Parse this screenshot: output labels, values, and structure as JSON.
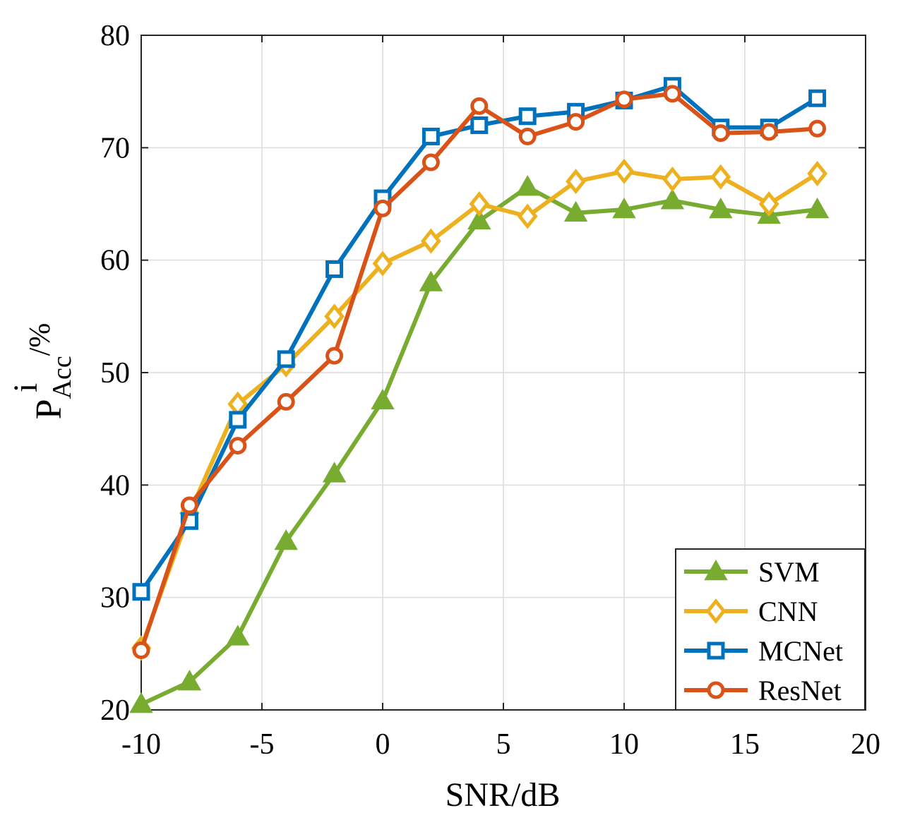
{
  "chart_data": {
    "type": "line",
    "title": "",
    "xlabel": "SNR/dB",
    "ylabel": {
      "base": "P",
      "superscript": "i",
      "subscript": "Acc",
      "suffix": "/%"
    },
    "xlim": [
      -10,
      20
    ],
    "ylim": [
      20,
      80
    ],
    "xticks": [
      -10,
      -5,
      0,
      5,
      10,
      15,
      20
    ],
    "yticks": [
      20,
      30,
      40,
      50,
      60,
      70,
      80
    ],
    "xtick_labels": [
      "-10",
      "-5",
      "0",
      "5",
      "10",
      "15",
      "20"
    ],
    "ytick_labels": [
      "20",
      "30",
      "40",
      "50",
      "60",
      "70",
      "80"
    ],
    "grid": true,
    "legend_position": "bottom-right",
    "x": [
      -10,
      -8,
      -6,
      -4,
      -2,
      0,
      2,
      4,
      6,
      8,
      10,
      12,
      14,
      16,
      18
    ],
    "series": [
      {
        "name": "SVM",
        "color": "#77AC30",
        "marker": "triangle",
        "values": [
          20.5,
          22.5,
          26.5,
          35.0,
          41.0,
          47.5,
          58.0,
          63.5,
          66.5,
          64.2,
          64.5,
          65.3,
          64.5,
          64.0,
          64.5
        ]
      },
      {
        "name": "CNN",
        "color": "#EDB120",
        "marker": "diamond",
        "values": [
          25.5,
          37.5,
          47.2,
          50.7,
          55.0,
          59.7,
          61.7,
          65.0,
          63.9,
          67.0,
          67.9,
          67.2,
          67.4,
          65.0,
          67.7
        ]
      },
      {
        "name": "MCNet",
        "color": "#0072BD",
        "marker": "square",
        "values": [
          30.5,
          36.8,
          45.8,
          51.2,
          59.2,
          65.5,
          71.0,
          72.0,
          72.8,
          73.2,
          74.2,
          75.5,
          71.8,
          71.8,
          74.4
        ]
      },
      {
        "name": "ResNet",
        "color": "#D95319",
        "marker": "circle",
        "values": [
          25.3,
          38.2,
          43.5,
          47.4,
          51.5,
          64.6,
          68.7,
          73.7,
          71.0,
          72.3,
          74.3,
          74.8,
          71.3,
          71.4,
          71.7
        ]
      }
    ]
  }
}
